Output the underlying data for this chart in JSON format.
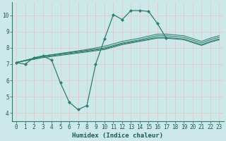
{
  "xlabel": "Humidex (Indice chaleur)",
  "xlim": [
    -0.5,
    23.5
  ],
  "ylim": [
    3.5,
    10.8
  ],
  "yticks": [
    4,
    5,
    6,
    7,
    8,
    9,
    10
  ],
  "xticks": [
    0,
    1,
    2,
    3,
    4,
    5,
    6,
    7,
    8,
    9,
    10,
    11,
    12,
    13,
    14,
    15,
    16,
    17,
    18,
    19,
    20,
    21,
    22,
    23
  ],
  "bg_color": "#cce8e8",
  "grid_color": "#e8c8c8",
  "line_color": "#2e7d6e",
  "lines": [
    {
      "x": [
        0,
        1,
        2,
        3,
        4,
        5,
        6,
        7,
        8,
        9,
        10,
        11,
        12,
        13,
        14,
        15,
        16,
        17,
        18,
        19,
        20,
        21,
        22,
        23
      ],
      "y": [
        7.1,
        7.0,
        7.4,
        7.5,
        7.25,
        5.85,
        4.65,
        4.2,
        4.45,
        7.0,
        8.55,
        10.05,
        9.75,
        10.3,
        10.3,
        10.25,
        9.5,
        8.6,
        null,
        null,
        null,
        null,
        null,
        null
      ],
      "marker": true
    },
    {
      "x": [
        0,
        3,
        8,
        10,
        11,
        12,
        14,
        16,
        17,
        19,
        21,
        22,
        23
      ],
      "y": [
        7.1,
        7.5,
        7.9,
        8.1,
        8.25,
        8.4,
        8.6,
        8.85,
        8.85,
        8.75,
        8.4,
        8.6,
        8.75
      ],
      "marker": false
    },
    {
      "x": [
        0,
        3,
        8,
        10,
        11,
        12,
        14,
        16,
        17,
        19,
        21,
        22,
        23
      ],
      "y": [
        7.1,
        7.5,
        7.85,
        8.0,
        8.15,
        8.3,
        8.5,
        8.75,
        8.75,
        8.65,
        8.3,
        8.5,
        8.65
      ],
      "marker": false
    },
    {
      "x": [
        0,
        3,
        8,
        10,
        11,
        12,
        14,
        16,
        17,
        19,
        21,
        22,
        23
      ],
      "y": [
        7.1,
        7.45,
        7.8,
        7.95,
        8.1,
        8.25,
        8.45,
        8.65,
        8.65,
        8.55,
        8.2,
        8.4,
        8.55
      ],
      "marker": false
    },
    {
      "x": [
        0,
        3,
        8,
        10,
        11,
        12,
        14,
        16,
        17,
        19,
        21,
        22,
        23
      ],
      "y": [
        7.1,
        7.4,
        7.75,
        7.9,
        8.05,
        8.2,
        8.4,
        8.6,
        8.6,
        8.5,
        8.15,
        8.35,
        8.5
      ],
      "marker": false
    }
  ]
}
